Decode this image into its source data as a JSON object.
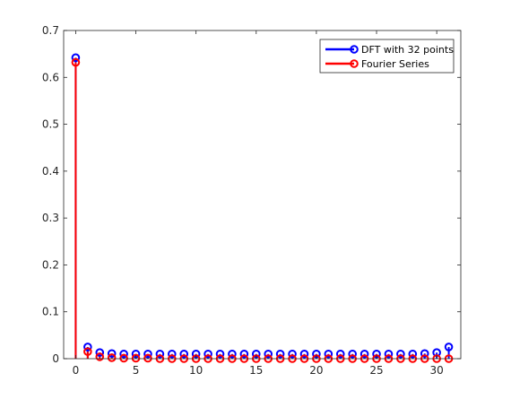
{
  "chart_data": {
    "type": "stem",
    "title": "",
    "xlabel": "",
    "ylabel": "",
    "xlim": [
      -1,
      32
    ],
    "ylim": [
      0,
      0.7
    ],
    "xticks": [
      0,
      5,
      10,
      15,
      20,
      25,
      30
    ],
    "yticks": [
      0,
      0.1,
      0.2,
      0.3,
      0.4,
      0.5,
      0.6,
      0.7
    ],
    "xtick_labels": [
      "0",
      "5",
      "10",
      "15",
      "20",
      "25",
      "30"
    ],
    "ytick_labels": [
      "0",
      "0.1",
      "0.2",
      "0.3",
      "0.4",
      "0.5",
      "0.6",
      "0.7"
    ],
    "grid": false,
    "legend_position": "top-right",
    "series": [
      {
        "name": "DFT with 32 points",
        "color": "#0000ff",
        "x": [
          0,
          1,
          2,
          3,
          4,
          5,
          6,
          7,
          8,
          9,
          10,
          11,
          12,
          13,
          14,
          15,
          16,
          17,
          18,
          19,
          20,
          21,
          22,
          23,
          24,
          25,
          26,
          27,
          28,
          29,
          30,
          31
        ],
        "y": [
          0.642,
          0.025,
          0.013,
          0.011,
          0.01,
          0.01,
          0.01,
          0.01,
          0.01,
          0.01,
          0.01,
          0.01,
          0.01,
          0.01,
          0.01,
          0.01,
          0.01,
          0.01,
          0.01,
          0.01,
          0.01,
          0.01,
          0.01,
          0.01,
          0.01,
          0.01,
          0.01,
          0.01,
          0.01,
          0.011,
          0.013,
          0.025
        ]
      },
      {
        "name": "Fourier Series",
        "color": "#ff0000",
        "x": [
          0,
          1,
          2,
          3,
          4,
          5,
          6,
          7,
          8,
          9,
          10,
          11,
          12,
          13,
          14,
          15,
          16,
          17,
          18,
          19,
          20,
          21,
          22,
          23,
          24,
          25,
          26,
          27,
          28,
          29,
          30,
          31
        ],
        "y": [
          0.632,
          0.015,
          0.004,
          0.002,
          0.001,
          0.001,
          0.001,
          0.0,
          0.0,
          0.0,
          0.0,
          0.0,
          0.0,
          0.0,
          0.0,
          0.0,
          0.0,
          0.0,
          0.0,
          0.0,
          0.0,
          0.0,
          0.0,
          0.0,
          0.0,
          0.0,
          0.0,
          0.0,
          0.0,
          0.0,
          0.0,
          0.0
        ]
      }
    ]
  }
}
